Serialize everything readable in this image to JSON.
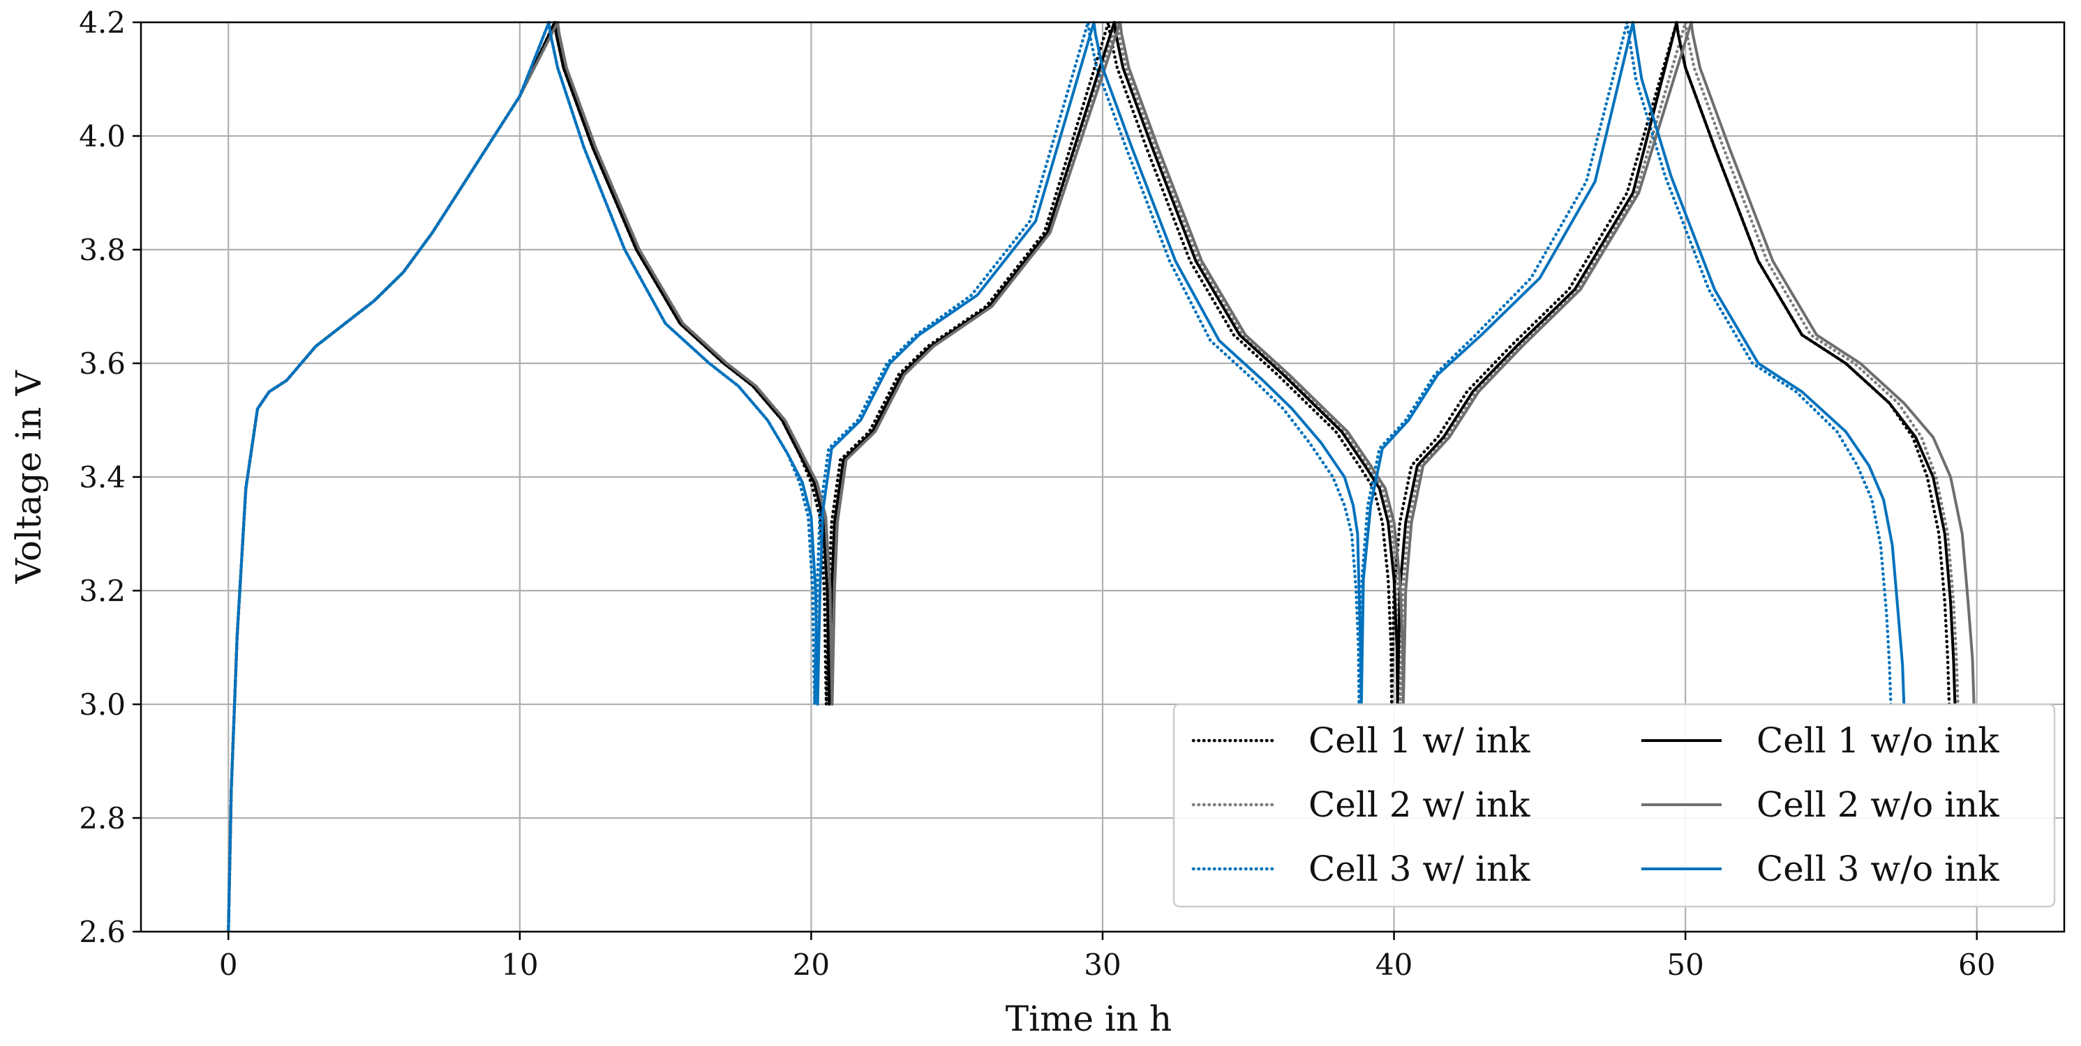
{
  "chart_data": {
    "type": "line",
    "title": "",
    "xlabel": "Time in h",
    "ylabel": "Voltage in V",
    "xlim": [
      -3,
      63
    ],
    "ylim": [
      2.6,
      4.2
    ],
    "x_ticks": [
      0,
      10,
      20,
      30,
      40,
      50,
      60
    ],
    "x_tick_labels": [
      "0",
      "10",
      "20",
      "30",
      "40",
      "50",
      "60"
    ],
    "y_ticks": [
      2.6,
      2.8,
      3.0,
      3.2,
      3.4,
      3.6,
      3.8,
      4.0,
      4.2
    ],
    "y_tick_labels": [
      "2.6",
      "2.8",
      "3.0",
      "3.2",
      "3.4",
      "3.6",
      "3.8",
      "4.0",
      "4.2"
    ],
    "grid": true,
    "legend_position": "lower-right",
    "legend_columns": 2,
    "series": [
      {
        "name": "Cell 1 w/ ink",
        "color": "#000000",
        "style": "dotted",
        "x": [
          0,
          0.1,
          0.3,
          0.6,
          1,
          1.4,
          2,
          3,
          4,
          5,
          6,
          7,
          8,
          9,
          10,
          11.2,
          11.25,
          11.5,
          12.5,
          14,
          15.5,
          17,
          18,
          19,
          19.6,
          20.0,
          20.3,
          20.45,
          20.5,
          20.52,
          20.6,
          20.7,
          21.0,
          22,
          23,
          24,
          26,
          28,
          30.2,
          30.25,
          30.5,
          31.5,
          33,
          34.5,
          36,
          37,
          38,
          38.8,
          39.3,
          39.6,
          39.8,
          39.9,
          39.92,
          40.0,
          40.2,
          40.6,
          41.5,
          42.5,
          44,
          46,
          48,
          49.7,
          49.75,
          50.0,
          51,
          52.5,
          54,
          55.5,
          57,
          57.8,
          58.3,
          58.7,
          58.9,
          59.0,
          59.05
        ],
        "y": [
          2.6,
          2.85,
          3.12,
          3.38,
          3.52,
          3.55,
          3.57,
          3.63,
          3.67,
          3.71,
          3.76,
          3.83,
          3.91,
          3.99,
          4.07,
          4.2,
          4.18,
          4.12,
          3.98,
          3.8,
          3.67,
          3.6,
          3.56,
          3.5,
          3.44,
          3.39,
          3.33,
          3.2,
          3.05,
          3.0,
          3.2,
          3.32,
          3.43,
          3.48,
          3.58,
          3.63,
          3.7,
          3.83,
          4.2,
          4.18,
          4.12,
          3.98,
          3.78,
          3.65,
          3.58,
          3.53,
          3.48,
          3.42,
          3.38,
          3.32,
          3.22,
          3.1,
          3.0,
          3.2,
          3.32,
          3.42,
          3.47,
          3.55,
          3.63,
          3.73,
          3.9,
          4.2,
          4.18,
          4.12,
          3.98,
          3.78,
          3.65,
          3.6,
          3.53,
          3.47,
          3.4,
          3.3,
          3.18,
          3.08,
          3.0
        ]
      },
      {
        "name": "Cell 2 w/ ink",
        "color": "#7f7f7f",
        "style": "dotted",
        "x": [
          0,
          0.1,
          0.3,
          0.6,
          1,
          1.4,
          2,
          3,
          4,
          5,
          6,
          7,
          8,
          9,
          10,
          11.3,
          11.35,
          11.6,
          12.6,
          14.1,
          15.6,
          17.1,
          18.1,
          19.1,
          19.7,
          20.1,
          20.4,
          20.55,
          20.6,
          20.62,
          20.7,
          20.8,
          21.1,
          22.1,
          23.1,
          24.1,
          26.1,
          28.1,
          30.5,
          30.55,
          30.8,
          31.8,
          33.3,
          34.8,
          36.3,
          37.3,
          38.3,
          39.1,
          39.6,
          39.9,
          40.1,
          40.2,
          40.22,
          40.3,
          40.5,
          40.9,
          41.8,
          42.8,
          44.3,
          46.3,
          48.3,
          50.0,
          50.05,
          50.3,
          51.3,
          52.8,
          54.3,
          55.8,
          57.3,
          58.1,
          58.6,
          59.0,
          59.2,
          59.3,
          59.35
        ],
        "y": [
          2.6,
          2.85,
          3.12,
          3.38,
          3.52,
          3.55,
          3.57,
          3.63,
          3.67,
          3.71,
          3.76,
          3.83,
          3.91,
          3.99,
          4.07,
          4.2,
          4.18,
          4.12,
          3.98,
          3.8,
          3.67,
          3.6,
          3.56,
          3.5,
          3.44,
          3.39,
          3.33,
          3.2,
          3.05,
          3.0,
          3.2,
          3.32,
          3.43,
          3.48,
          3.58,
          3.63,
          3.7,
          3.83,
          4.2,
          4.18,
          4.12,
          3.98,
          3.78,
          3.65,
          3.58,
          3.53,
          3.48,
          3.42,
          3.38,
          3.32,
          3.22,
          3.1,
          3.0,
          3.2,
          3.32,
          3.42,
          3.47,
          3.55,
          3.63,
          3.73,
          3.9,
          4.2,
          4.18,
          4.12,
          3.98,
          3.78,
          3.65,
          3.6,
          3.53,
          3.47,
          3.4,
          3.3,
          3.18,
          3.08,
          3.0
        ]
      },
      {
        "name": "Cell 3 w/ ink",
        "color": "#0072bd",
        "style": "dotted",
        "x": [
          0,
          0.1,
          0.3,
          0.6,
          1,
          1.4,
          2,
          3,
          4,
          5,
          6,
          7,
          8,
          9,
          10,
          11.0,
          11.05,
          11.3,
          12.2,
          13.6,
          15.0,
          16.5,
          17.5,
          18.5,
          19.2,
          19.6,
          19.9,
          20.05,
          20.1,
          20.12,
          20.2,
          20.3,
          20.6,
          21.6,
          22.6,
          23.6,
          25.5,
          27.5,
          29.5,
          29.55,
          29.8,
          30.8,
          32.3,
          33.7,
          35.2,
          36.2,
          37.1,
          37.9,
          38.3,
          38.55,
          38.7,
          38.78,
          38.8,
          38.9,
          39.1,
          39.5,
          40.4,
          41.4,
          42.8,
          44.7,
          46.6,
          48.0,
          48.05,
          48.3,
          49.3,
          50.8,
          52.3,
          53.8,
          55.2,
          55.9,
          56.4,
          56.7,
          56.9,
          57.0,
          57.05
        ],
        "y": [
          2.6,
          2.85,
          3.12,
          3.38,
          3.52,
          3.55,
          3.57,
          3.63,
          3.67,
          3.71,
          3.76,
          3.83,
          3.91,
          3.99,
          4.07,
          4.2,
          4.18,
          4.12,
          3.98,
          3.8,
          3.67,
          3.6,
          3.56,
          3.5,
          3.44,
          3.39,
          3.33,
          3.2,
          3.05,
          3.0,
          3.2,
          3.34,
          3.45,
          3.5,
          3.6,
          3.65,
          3.72,
          3.85,
          4.2,
          4.18,
          4.12,
          3.98,
          3.78,
          3.64,
          3.57,
          3.52,
          3.46,
          3.4,
          3.35,
          3.3,
          3.2,
          3.1,
          3.0,
          3.22,
          3.35,
          3.45,
          3.5,
          3.58,
          3.65,
          3.75,
          3.92,
          4.2,
          4.18,
          4.1,
          3.93,
          3.73,
          3.6,
          3.55,
          3.48,
          3.42,
          3.36,
          3.28,
          3.16,
          3.07,
          3.0
        ]
      },
      {
        "name": "Cell 1 w/o ink",
        "color": "#000000",
        "style": "solid",
        "x": [
          0,
          0.1,
          0.3,
          0.6,
          1,
          1.4,
          2,
          3,
          4,
          5,
          6,
          7,
          8,
          9,
          10,
          11.2,
          11.25,
          11.5,
          12.5,
          14,
          15.5,
          17,
          18,
          19,
          19.6,
          20.1,
          20.4,
          20.55,
          20.6,
          20.62,
          20.7,
          20.8,
          21.1,
          22.1,
          23.1,
          24.1,
          26.1,
          28.1,
          30.4,
          30.45,
          30.7,
          31.7,
          33.2,
          34.7,
          36.2,
          37.2,
          38.2,
          39.0,
          39.5,
          39.8,
          40.0,
          40.1,
          40.12,
          40.2,
          40.4,
          40.8,
          41.7,
          42.7,
          44.2,
          46.2,
          48.2,
          49.7,
          49.75,
          50.0,
          51.0,
          52.5,
          54.0,
          55.5,
          57.0,
          57.9,
          58.5,
          58.9,
          59.1,
          59.2,
          59.25
        ],
        "y": [
          2.6,
          2.85,
          3.12,
          3.38,
          3.52,
          3.55,
          3.57,
          3.63,
          3.67,
          3.71,
          3.76,
          3.83,
          3.91,
          3.99,
          4.07,
          4.2,
          4.18,
          4.12,
          3.98,
          3.8,
          3.67,
          3.6,
          3.56,
          3.5,
          3.44,
          3.39,
          3.33,
          3.2,
          3.05,
          3.0,
          3.2,
          3.32,
          3.43,
          3.48,
          3.58,
          3.63,
          3.7,
          3.83,
          4.2,
          4.18,
          4.12,
          3.98,
          3.78,
          3.65,
          3.58,
          3.53,
          3.48,
          3.42,
          3.38,
          3.32,
          3.22,
          3.1,
          3.0,
          3.2,
          3.32,
          3.42,
          3.47,
          3.55,
          3.63,
          3.73,
          3.9,
          4.2,
          4.18,
          4.12,
          3.98,
          3.78,
          3.65,
          3.6,
          3.53,
          3.47,
          3.4,
          3.3,
          3.18,
          3.08,
          3.0
        ]
      },
      {
        "name": "Cell 2 w/o ink",
        "color": "#6e6e6e",
        "style": "solid",
        "x": [
          0,
          0.1,
          0.3,
          0.6,
          1,
          1.4,
          2,
          3,
          4,
          5,
          6,
          7,
          8,
          9,
          10,
          11.3,
          11.35,
          11.6,
          12.6,
          14.1,
          15.6,
          17.1,
          18.1,
          19.1,
          19.7,
          20.2,
          20.5,
          20.65,
          20.7,
          20.72,
          20.8,
          20.9,
          21.2,
          22.2,
          23.2,
          24.2,
          26.2,
          28.2,
          30.6,
          30.65,
          30.9,
          31.9,
          33.4,
          34.9,
          36.4,
          37.4,
          38.4,
          39.2,
          39.7,
          40.0,
          40.2,
          40.3,
          40.32,
          40.4,
          40.6,
          41.0,
          41.9,
          42.9,
          44.4,
          46.4,
          48.4,
          50.2,
          50.25,
          50.5,
          51.5,
          53.0,
          54.5,
          56.0,
          57.5,
          58.5,
          59.1,
          59.5,
          59.7,
          59.85,
          59.9
        ],
        "y": [
          2.6,
          2.85,
          3.12,
          3.38,
          3.52,
          3.55,
          3.57,
          3.63,
          3.67,
          3.71,
          3.76,
          3.83,
          3.91,
          3.99,
          4.07,
          4.2,
          4.18,
          4.12,
          3.98,
          3.8,
          3.67,
          3.6,
          3.56,
          3.5,
          3.44,
          3.39,
          3.33,
          3.2,
          3.05,
          3.0,
          3.2,
          3.32,
          3.43,
          3.48,
          3.58,
          3.63,
          3.7,
          3.83,
          4.2,
          4.18,
          4.12,
          3.98,
          3.78,
          3.65,
          3.58,
          3.53,
          3.48,
          3.42,
          3.38,
          3.32,
          3.22,
          3.1,
          3.0,
          3.2,
          3.32,
          3.42,
          3.47,
          3.55,
          3.63,
          3.73,
          3.9,
          4.2,
          4.18,
          4.12,
          3.98,
          3.78,
          3.65,
          3.6,
          3.53,
          3.47,
          3.4,
          3.3,
          3.18,
          3.08,
          3.0
        ]
      },
      {
        "name": "Cell 3 w/o ink",
        "color": "#0072bd",
        "style": "solid",
        "x": [
          0,
          0.1,
          0.3,
          0.6,
          1,
          1.4,
          2,
          3,
          4,
          5,
          6,
          7,
          8,
          9,
          10,
          11.0,
          11.05,
          11.3,
          12.2,
          13.6,
          15.0,
          16.5,
          17.5,
          18.5,
          19.2,
          19.7,
          20.0,
          20.15,
          20.2,
          20.22,
          20.3,
          20.4,
          20.7,
          21.7,
          22.7,
          23.7,
          25.7,
          27.7,
          29.7,
          29.75,
          30.0,
          31.0,
          32.5,
          34.0,
          35.5,
          36.5,
          37.5,
          38.3,
          38.6,
          38.75,
          38.8,
          38.85,
          38.88,
          38.95,
          39.2,
          39.6,
          40.5,
          41.5,
          43.0,
          45.0,
          46.9,
          48.2,
          48.25,
          48.5,
          49.5,
          51.0,
          52.5,
          54.0,
          55.5,
          56.3,
          56.8,
          57.1,
          57.3,
          57.45,
          57.5
        ],
        "y": [
          2.6,
          2.85,
          3.12,
          3.38,
          3.52,
          3.55,
          3.57,
          3.63,
          3.67,
          3.71,
          3.76,
          3.83,
          3.91,
          3.99,
          4.07,
          4.2,
          4.18,
          4.12,
          3.98,
          3.8,
          3.67,
          3.6,
          3.56,
          3.5,
          3.44,
          3.39,
          3.33,
          3.2,
          3.05,
          3.0,
          3.2,
          3.34,
          3.45,
          3.5,
          3.6,
          3.65,
          3.72,
          3.85,
          4.2,
          4.18,
          4.12,
          3.98,
          3.78,
          3.64,
          3.57,
          3.52,
          3.46,
          3.4,
          3.35,
          3.3,
          3.2,
          3.1,
          3.0,
          3.22,
          3.35,
          3.45,
          3.5,
          3.58,
          3.65,
          3.75,
          3.92,
          4.2,
          4.18,
          4.1,
          3.93,
          3.73,
          3.6,
          3.55,
          3.48,
          3.42,
          3.36,
          3.28,
          3.16,
          3.07,
          3.0
        ]
      }
    ]
  }
}
